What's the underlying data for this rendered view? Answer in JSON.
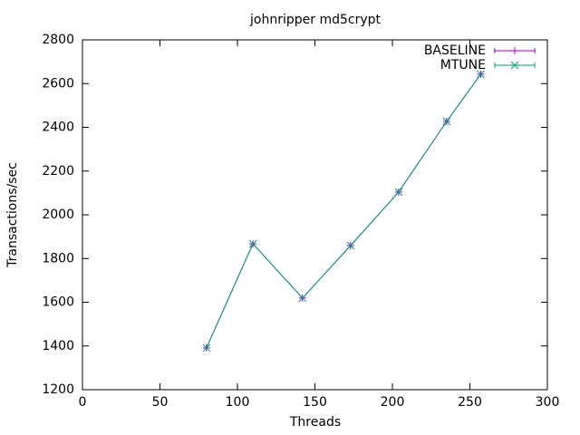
{
  "chart_data": {
    "type": "line",
    "title": "johnripper md5crypt",
    "x_label": "Threads",
    "y_label": "Transactions/sec",
    "x": [
      80,
      110,
      142,
      173,
      204,
      235,
      257
    ],
    "series": [
      {
        "name": "BASELINE",
        "color": "#9400d3",
        "marker": "+",
        "values": [
          1391,
          1867,
          1619,
          1859,
          2104,
          2427,
          2643
        ]
      },
      {
        "name": "MTUNE",
        "color": "#009e73",
        "marker": "x",
        "values": [
          1391,
          1867,
          1619,
          1859,
          2104,
          2427,
          2643
        ]
      }
    ],
    "xlim": [
      0,
      300
    ],
    "xticks": [
      0,
      50,
      100,
      150,
      200,
      250,
      300
    ],
    "ylim": [
      1200,
      2800
    ],
    "yticks": [
      1200,
      1400,
      1600,
      1800,
      2000,
      2200,
      2400,
      2600,
      2800
    ],
    "legend": "top-right",
    "grid": false
  }
}
